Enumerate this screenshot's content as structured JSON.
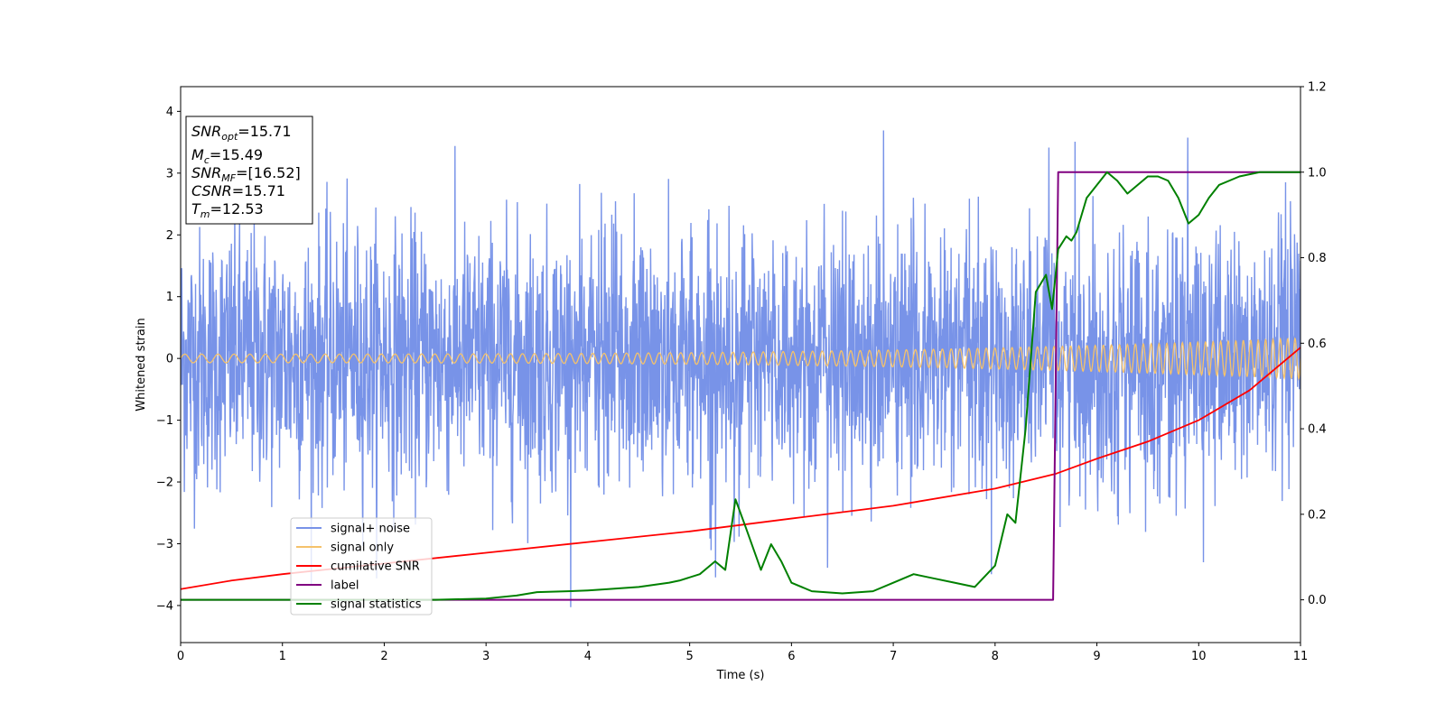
{
  "chart_data": {
    "type": "line",
    "xlabel": "Time (s)",
    "ylabel": "Whitened strain",
    "xlim": [
      0,
      11
    ],
    "ylim": [
      -4.6,
      4.4
    ],
    "y2lim": [
      -0.1,
      1.2
    ],
    "xticks": [
      "0",
      "1",
      "2",
      "3",
      "4",
      "5",
      "6",
      "7",
      "8",
      "9",
      "10",
      "11"
    ],
    "yticks": [
      "4",
      "3",
      "2",
      "1",
      "0",
      "−1",
      "−2",
      "−3",
      "−4"
    ],
    "y2ticks": [
      "1.2",
      "1.0",
      "0.8",
      "0.6",
      "0.4",
      "0.2",
      "0.0"
    ],
    "grid": false,
    "legend_position": "lower-left",
    "legend": [
      {
        "label": "signal+ noise",
        "color": "#7893e8"
      },
      {
        "label": "signal only",
        "color": "#f5c26b"
      },
      {
        "label": "cumilative SNR",
        "color": "#ff0000"
      },
      {
        "label": "label",
        "color": "#800080"
      },
      {
        "label": "signal statistics",
        "color": "#008000"
      }
    ],
    "annotation": {
      "lines": [
        {
          "sym": "SNR",
          "sub": "opt",
          "val": "=15.71"
        },
        {
          "sym": "M",
          "sub": "c",
          "val": "=15.49"
        },
        {
          "sym": "SNR",
          "sub": "MF",
          "val": "=[16.52]"
        },
        {
          "sym": "CSNR",
          "sub": "",
          "val": "=15.71"
        },
        {
          "sym": "T",
          "sub": "m",
          "val": "=12.53"
        }
      ]
    },
    "series": [
      {
        "name": "signal+ noise",
        "axis": "left",
        "color": "#7893e8",
        "summary": {
          "mean": 0.0,
          "std": 1.0,
          "min": -4.15,
          "max": 4.0
        }
      },
      {
        "name": "signal only",
        "axis": "left",
        "color": "#f5c26b",
        "amplitude_start": 0.07,
        "amplitude_end": 0.33,
        "cycles": 110
      },
      {
        "name": "cumilative SNR",
        "axis": "right",
        "x": [
          0,
          0.5,
          1,
          2,
          3,
          4,
          5,
          6,
          7,
          8,
          8.6,
          9,
          9.5,
          10,
          10.5,
          11
        ],
        "y": [
          0.025,
          0.045,
          0.06,
          0.085,
          0.11,
          0.135,
          0.16,
          0.19,
          0.22,
          0.26,
          0.295,
          0.33,
          0.37,
          0.42,
          0.49,
          0.59
        ]
      },
      {
        "name": "label",
        "axis": "right",
        "x": [
          0,
          8.57,
          8.62,
          11
        ],
        "y": [
          0.0,
          0.0,
          1.0,
          1.0
        ]
      },
      {
        "name": "signal statistics",
        "axis": "right",
        "x": [
          0,
          1,
          2,
          2.5,
          3,
          3.3,
          3.5,
          3.8,
          4,
          4.2,
          4.5,
          4.8,
          4.9,
          5.1,
          5.25,
          5.35,
          5.45,
          5.55,
          5.7,
          5.8,
          5.9,
          6,
          6.2,
          6.5,
          6.8,
          7,
          7.2,
          7.4,
          7.6,
          7.8,
          8,
          8.12,
          8.2,
          8.3,
          8.4,
          8.5,
          8.56,
          8.62,
          8.7,
          8.75,
          8.8,
          8.85,
          8.9,
          9.0,
          9.1,
          9.2,
          9.3,
          9.4,
          9.5,
          9.6,
          9.7,
          9.8,
          9.9,
          10.0,
          10.1,
          10.2,
          10.3,
          10.4,
          10.6,
          10.8,
          11
        ],
        "y": [
          0.0,
          0.0,
          0.0,
          0.0,
          0.003,
          0.01,
          0.018,
          0.02,
          0.022,
          0.025,
          0.03,
          0.04,
          0.045,
          0.06,
          0.09,
          0.07,
          0.235,
          0.17,
          0.07,
          0.13,
          0.09,
          0.04,
          0.02,
          0.015,
          0.02,
          0.04,
          0.06,
          0.05,
          0.04,
          0.03,
          0.08,
          0.2,
          0.18,
          0.4,
          0.72,
          0.76,
          0.68,
          0.82,
          0.85,
          0.84,
          0.86,
          0.9,
          0.94,
          0.97,
          1.0,
          0.98,
          0.95,
          0.97,
          0.99,
          0.99,
          0.98,
          0.94,
          0.88,
          0.9,
          0.94,
          0.97,
          0.98,
          0.99,
          1.0,
          1.0,
          1.0
        ]
      }
    ]
  }
}
